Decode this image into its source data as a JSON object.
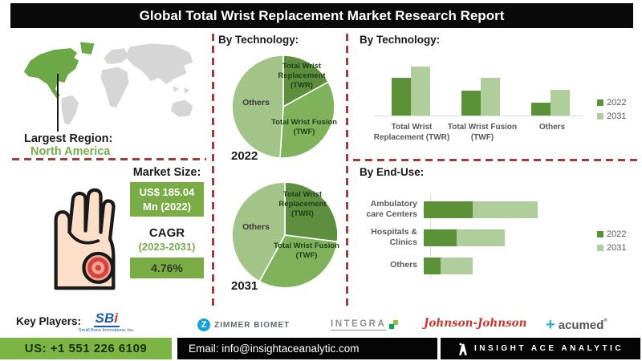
{
  "title": "Global Total Wrist Replacement Market Research Report",
  "sections": {
    "tech_pie": "By Technology:",
    "tech_bar": "By Technology:",
    "end_use": "By End-Use:"
  },
  "region": {
    "label": "Largest Region:",
    "value": "North America"
  },
  "market": {
    "size_label": "Market Size:",
    "size_line1": "US$ 185.04",
    "size_line2": "Mn (2022)",
    "cagr_label": "CAGR",
    "cagr_period": "(2023-2031)",
    "cagr_value": "4.76%"
  },
  "legend": {
    "y2022": "2022",
    "y2031": "2031"
  },
  "chart_data": [
    {
      "type": "pie",
      "title": "By Technology:",
      "year": "2022",
      "labels": [
        "Total Wrist Replacement (TWR)",
        "Total Wrist Fusion (TWF)",
        "Others"
      ],
      "values_pct": [
        17,
        34,
        49
      ],
      "colors": [
        "#5D8F3F",
        "#7FB25A",
        "#A3C489"
      ],
      "note": "share estimated from wedge angles; no numeric labels shown"
    },
    {
      "type": "pie",
      "title": "By Technology:",
      "year": "2031",
      "labels": [
        "Total Wrist Replacement (TWR)",
        "Total Wrist Fusion (TWF)",
        "Others"
      ],
      "values_pct": [
        27,
        31,
        42
      ],
      "colors": [
        "#5D8F3F",
        "#7FB25A",
        "#A3C489"
      ],
      "note": "share estimated from wedge angles; no numeric labels shown"
    },
    {
      "type": "bar",
      "title": "By Technology:",
      "categories": [
        "Total Wrist Replacement (TWR)",
        "Total Wrist Fusion (TWF)",
        "Others"
      ],
      "series": [
        {
          "name": "2022",
          "values": [
            47,
            31,
            16
          ]
        },
        {
          "name": "2031",
          "values": [
            61,
            47,
            32
          ]
        }
      ],
      "legend_position": "right",
      "note": "no numeric axis shown; values are relative bar heights in px"
    },
    {
      "type": "bar-horizontal-stacked",
      "title": "By End-Use:",
      "categories": [
        "Ambulatory care Centers",
        "Hospitals & Clinics",
        "Others"
      ],
      "series": [
        {
          "name": "2022",
          "values": [
            61,
            41,
            21
          ]
        },
        {
          "name": "2031",
          "values": [
            81,
            60,
            40
          ]
        }
      ],
      "legend_position": "right",
      "note": "no numeric axis shown; values are relative segment lengths in px"
    }
  ],
  "key_players": {
    "label": "Key Players:",
    "sbi_sb": "SB",
    "sbi_i": "i",
    "sbi_sub": "Small Bone Innovations, Inc.",
    "zimmer_z": "Z",
    "zimmer": "ZIMMER BIOMET",
    "integra": "INTEGRA",
    "jnj": "Johnson-Johnson",
    "acumed_plus": "+",
    "acumed": "acumed",
    "acumed_reg": "®"
  },
  "contact": {
    "phone": "US: +1 551 226 6109",
    "email": "Email: info@insightaceanalytic.com"
  },
  "brand": {
    "name": "INSIGHT ACE ANALYTIC"
  },
  "colors": {
    "accent_green": "#79AC44",
    "phone_green": "#7CB543",
    "dark_green_2022": "#5B9237",
    "light_green_2031": "#AFCE9C",
    "region_green": "#76AD4B",
    "dashed_red": "#A13C3C",
    "map_gray": "#D6D6D6",
    "map_highlight": "#6CA845"
  }
}
